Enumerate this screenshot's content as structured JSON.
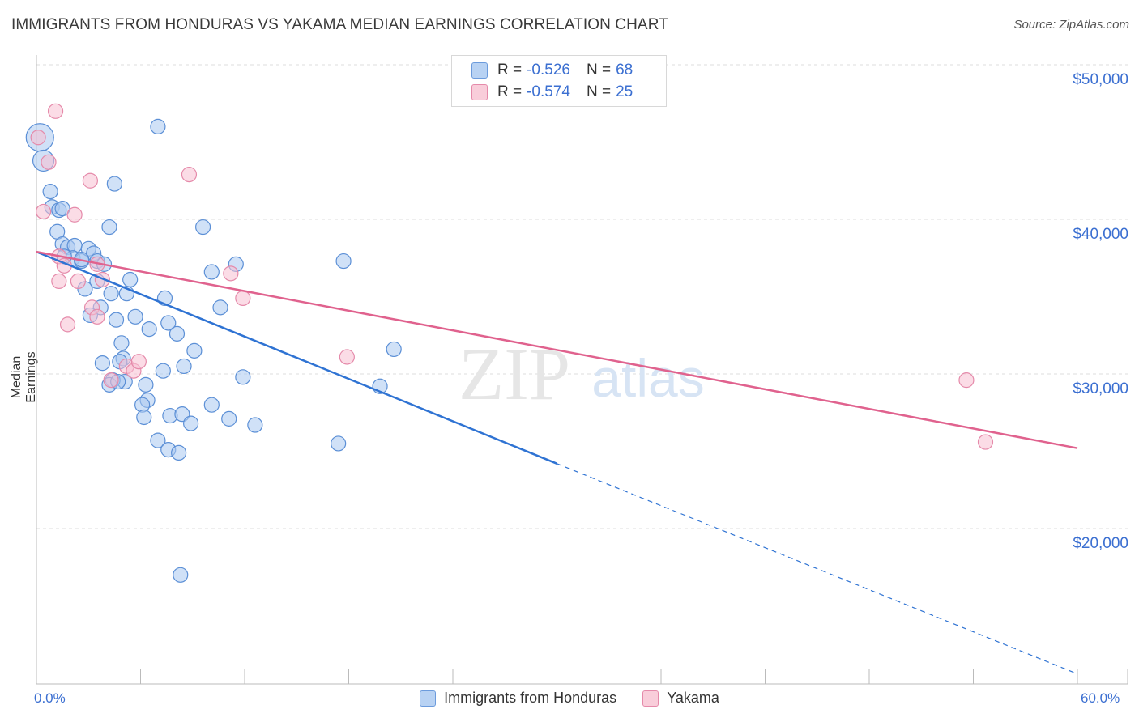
{
  "title": "IMMIGRANTS FROM HONDURAS VS YAKAMA MEDIAN EARNINGS CORRELATION CHART",
  "source": "Source: ZipAtlas.com",
  "watermark": {
    "zip": "ZIP",
    "atlas": "atlas"
  },
  "legend": [
    {
      "r_label": "R =",
      "r_value": "-0.526",
      "n_label": "N =",
      "n_value": "68"
    },
    {
      "r_label": "R =",
      "r_value": "-0.574",
      "n_label": "N =",
      "n_value": "25"
    }
  ],
  "bottom_legend": [
    "Immigrants from Honduras",
    "Yakama"
  ],
  "colors": {
    "blue_fill": "#a9c8f0",
    "blue_stroke": "#5b8fd6",
    "blue_line": "#2f73d3",
    "pink_fill": "#f7bfd1",
    "pink_stroke": "#e58aaa",
    "pink_line": "#e0628e",
    "axis_text": "#3b6fd1",
    "grid": "#dddddd"
  },
  "chart_data": {
    "type": "scatter",
    "title": "IMMIGRANTS FROM HONDURAS VS YAKAMA MEDIAN EARNINGS CORRELATION CHART",
    "xlabel": "",
    "ylabel": "Median Earnings",
    "xlim": [
      0,
      60
    ],
    "ylim": [
      10000,
      50800
    ],
    "x_tick_labels": [
      "0.0%",
      "60.0%"
    ],
    "y_ticks": [
      20000,
      30000,
      40000,
      50000
    ],
    "y_tick_labels": [
      "$20,000",
      "$30,000",
      "$40,000",
      "$50,000"
    ],
    "series": [
      {
        "name": "Immigrants from Honduras",
        "points": [
          [
            0.2,
            45300
          ],
          [
            0.4,
            43800
          ],
          [
            0.8,
            41800
          ],
          [
            0.9,
            40800
          ],
          [
            1.3,
            40600
          ],
          [
            1.5,
            40700
          ],
          [
            1.2,
            39200
          ],
          [
            1.5,
            38400
          ],
          [
            1.8,
            38200
          ],
          [
            2.2,
            38300
          ],
          [
            2.1,
            37500
          ],
          [
            2.6,
            37300
          ],
          [
            3.0,
            38100
          ],
          [
            3.3,
            37800
          ],
          [
            3.5,
            37300
          ],
          [
            2.8,
            35500
          ],
          [
            3.7,
            34300
          ],
          [
            3.5,
            36000
          ],
          [
            3.1,
            33800
          ],
          [
            4.3,
            35200
          ],
          [
            4.6,
            33500
          ],
          [
            4.9,
            32000
          ],
          [
            5.2,
            35200
          ],
          [
            4.2,
            39500
          ],
          [
            5.4,
            36100
          ],
          [
            5.7,
            33700
          ],
          [
            6.5,
            32900
          ],
          [
            5.0,
            31000
          ],
          [
            6.3,
            29300
          ],
          [
            7.3,
            30200
          ],
          [
            7.4,
            34900
          ],
          [
            7.6,
            33300
          ],
          [
            8.1,
            32600
          ],
          [
            8.5,
            30500
          ],
          [
            9.1,
            31500
          ],
          [
            5.1,
            29500
          ],
          [
            4.4,
            29600
          ],
          [
            4.2,
            29300
          ],
          [
            4.7,
            29500
          ],
          [
            4.8,
            30800
          ],
          [
            3.8,
            30700
          ],
          [
            6.4,
            28300
          ],
          [
            6.1,
            28000
          ],
          [
            6.2,
            27200
          ],
          [
            7.7,
            27300
          ],
          [
            8.4,
            27400
          ],
          [
            8.9,
            26800
          ],
          [
            10.1,
            28000
          ],
          [
            11.1,
            27100
          ],
          [
            10.1,
            36600
          ],
          [
            10.6,
            34300
          ],
          [
            9.6,
            39500
          ],
          [
            11.5,
            37100
          ],
          [
            11.9,
            29800
          ],
          [
            12.6,
            26700
          ],
          [
            17.4,
            25500
          ],
          [
            17.7,
            37300
          ],
          [
            19.8,
            29200
          ],
          [
            20.6,
            31600
          ],
          [
            7.0,
            25700
          ],
          [
            7.6,
            25100
          ],
          [
            8.2,
            24900
          ],
          [
            8.3,
            17000
          ],
          [
            7.0,
            46000
          ],
          [
            1.6,
            37600
          ],
          [
            4.5,
            42300
          ],
          [
            3.9,
            37100
          ],
          [
            2.6,
            37400
          ]
        ]
      },
      {
        "name": "Yakama",
        "points": [
          [
            0.1,
            45300
          ],
          [
            1.1,
            47000
          ],
          [
            0.7,
            43700
          ],
          [
            0.4,
            40500
          ],
          [
            2.2,
            40300
          ],
          [
            3.1,
            42500
          ],
          [
            8.8,
            42900
          ],
          [
            1.3,
            37600
          ],
          [
            1.6,
            37000
          ],
          [
            1.3,
            36000
          ],
          [
            2.4,
            36000
          ],
          [
            3.8,
            36100
          ],
          [
            3.5,
            37100
          ],
          [
            5.2,
            30500
          ],
          [
            5.6,
            30200
          ],
          [
            5.9,
            30800
          ],
          [
            4.3,
            29600
          ],
          [
            1.8,
            33200
          ],
          [
            3.2,
            34300
          ],
          [
            3.5,
            33700
          ],
          [
            11.2,
            36500
          ],
          [
            11.9,
            34900
          ],
          [
            17.9,
            31100
          ],
          [
            53.6,
            29600
          ],
          [
            54.7,
            25600
          ]
        ]
      }
    ],
    "trendlines": [
      {
        "series": "Immigrants from Honduras",
        "from": [
          0,
          37900
        ],
        "to": [
          30,
          24200
        ],
        "dashed_to": [
          60,
          10600
        ]
      },
      {
        "series": "Yakama",
        "from": [
          0,
          37900
        ],
        "to": [
          60,
          25200
        ]
      }
    ]
  }
}
